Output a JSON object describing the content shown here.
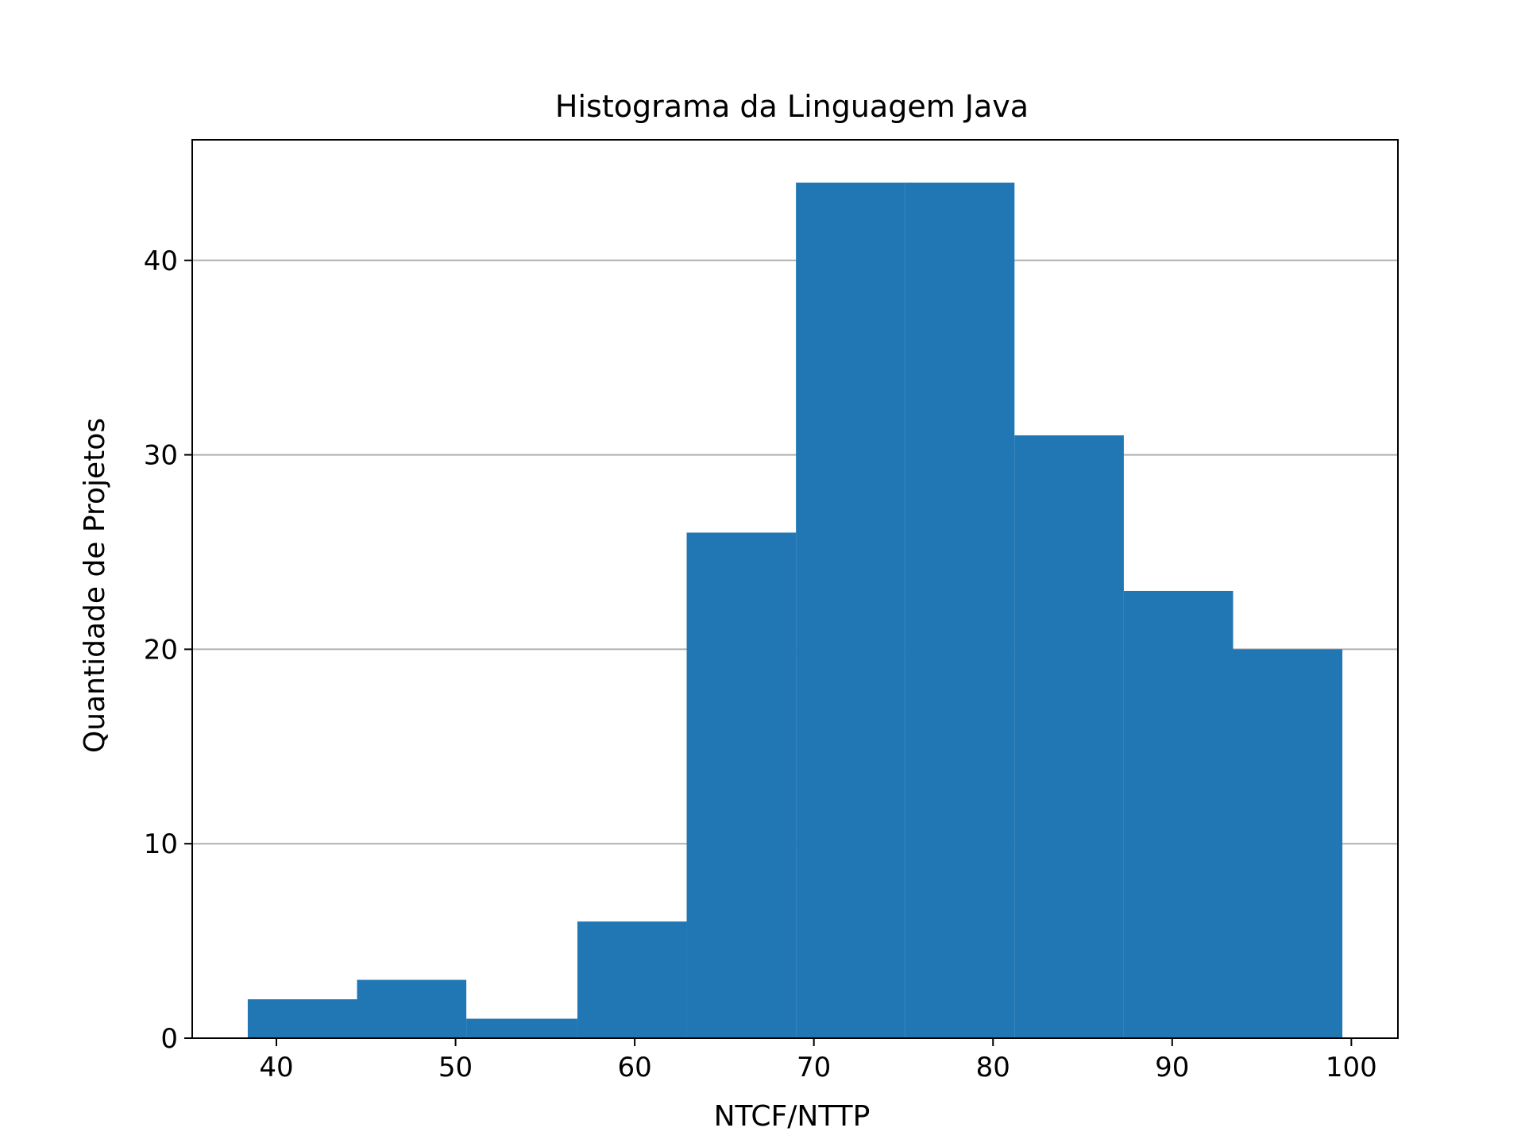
{
  "chart_data": {
    "type": "bar",
    "title": "Histograma da Linguagem Java",
    "xlabel": "NTCF/NTTP",
    "ylabel": "Quantidade de Projetos",
    "xlim": [
      35.3,
      102.6
    ],
    "ylim": [
      0,
      46.2
    ],
    "grid": "y",
    "bar_color": "#2077b4",
    "grid_color": "#b0b0b0",
    "x_ticks": [
      40,
      50,
      60,
      70,
      80,
      90,
      100
    ],
    "x_tick_labels": [
      "40",
      "50",
      "60",
      "70",
      "80",
      "90",
      "100"
    ],
    "y_ticks": [
      0,
      10,
      20,
      30,
      40
    ],
    "y_tick_labels": [
      "0",
      "10",
      "20",
      "30",
      "40"
    ],
    "bins": [
      {
        "start": 38.4,
        "end": 44.5,
        "count": 2
      },
      {
        "start": 44.5,
        "end": 50.6,
        "count": 3
      },
      {
        "start": 50.6,
        "end": 56.8,
        "count": 1
      },
      {
        "start": 56.8,
        "end": 62.9,
        "count": 6
      },
      {
        "start": 62.9,
        "end": 69.0,
        "count": 26
      },
      {
        "start": 69.0,
        "end": 75.1,
        "count": 44
      },
      {
        "start": 75.1,
        "end": 81.2,
        "count": 44
      },
      {
        "start": 81.2,
        "end": 87.3,
        "count": 31
      },
      {
        "start": 87.3,
        "end": 93.4,
        "count": 23
      },
      {
        "start": 93.4,
        "end": 99.5,
        "count": 20
      }
    ]
  }
}
